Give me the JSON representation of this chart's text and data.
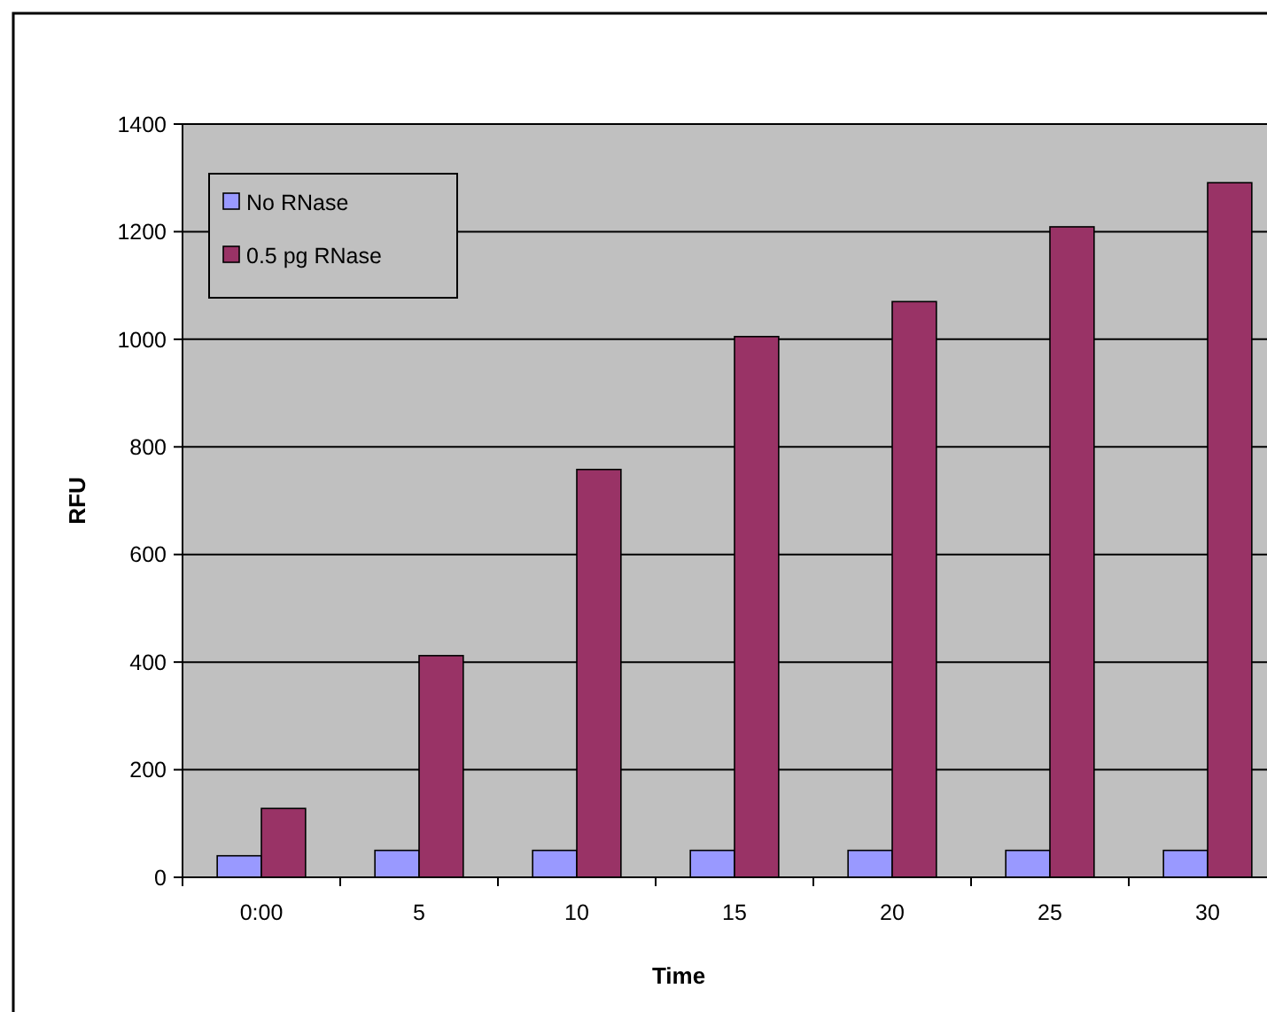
{
  "chart_data": {
    "type": "bar",
    "xlabel": "Time",
    "ylabel": "RFU",
    "categories": [
      "0:00",
      "5",
      "10",
      "15",
      "20",
      "25",
      "30"
    ],
    "series": [
      {
        "name": "No RNase",
        "color": "#9999ff",
        "values": [
          40,
          50,
          50,
          50,
          50,
          50,
          50
        ]
      },
      {
        "name": "0.5 pg RNase",
        "color": "#993366",
        "values": [
          128,
          412,
          758,
          1005,
          1070,
          1209,
          1291
        ]
      }
    ],
    "ylim": [
      0,
      1400
    ],
    "yticks": [
      0,
      200,
      400,
      600,
      800,
      1000,
      1200,
      1400
    ],
    "grid": "y",
    "legend": "top left"
  }
}
